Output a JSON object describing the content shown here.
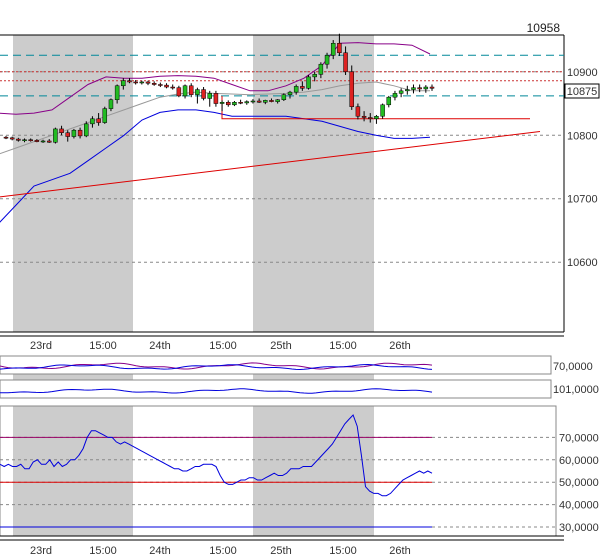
{
  "chart_data": [
    {
      "type": "candlestick",
      "header_value": "10958",
      "current_price": "10875",
      "y_ticks": [
        10600,
        10700,
        10800,
        10900
      ],
      "ylim": [
        10490,
        10958
      ],
      "x_tick_labels": [
        "23rd",
        "15:00",
        "24th",
        "15:00",
        "25th",
        "15:00",
        "26th"
      ],
      "colors": {
        "up": "#22bb22",
        "down": "#dd2222",
        "shade": "#cccccc",
        "mid_band": "#999999",
        "upper_band": "#880088",
        "lower_band": "#0000dd",
        "trend": "#dd0000",
        "support": "#008899"
      },
      "candles": [
        [
          10797,
          10799,
          10794,
          10796
        ],
        [
          10796,
          10798,
          10792,
          10794
        ],
        [
          10794,
          10796,
          10790,
          10792
        ],
        [
          10792,
          10795,
          10789,
          10793
        ],
        [
          10793,
          10795,
          10790,
          10792
        ],
        [
          10792,
          10794,
          10789,
          10790
        ],
        [
          10790,
          10793,
          10788,
          10791
        ],
        [
          10791,
          10794,
          10788,
          10789
        ],
        [
          10789,
          10812,
          10787,
          10810
        ],
        [
          10810,
          10815,
          10800,
          10804
        ],
        [
          10804,
          10808,
          10790,
          10798
        ],
        [
          10798,
          10810,
          10795,
          10808
        ],
        [
          10808,
          10812,
          10795,
          10799
        ],
        [
          10799,
          10822,
          10797,
          10818
        ],
        [
          10818,
          10830,
          10812,
          10826
        ],
        [
          10826,
          10835,
          10815,
          10820
        ],
        [
          10820,
          10845,
          10818,
          10842
        ],
        [
          10842,
          10858,
          10838,
          10856
        ],
        [
          10856,
          10880,
          10850,
          10878
        ],
        [
          10878,
          10890,
          10872,
          10886
        ],
        [
          10886,
          10890,
          10882,
          10884
        ],
        [
          10884,
          10887,
          10880,
          10883
        ],
        [
          10883,
          10886,
          10880,
          10884
        ],
        [
          10884,
          10886,
          10879,
          10882
        ],
        [
          10882,
          10885,
          10878,
          10880
        ],
        [
          10880,
          10883,
          10876,
          10879
        ],
        [
          10879,
          10882,
          10874,
          10876
        ],
        [
          10876,
          10880,
          10872,
          10875
        ],
        [
          10875,
          10878,
          10860,
          10862
        ],
        [
          10862,
          10880,
          10858,
          10878
        ],
        [
          10878,
          10882,
          10860,
          10864
        ],
        [
          10864,
          10875,
          10850,
          10872
        ],
        [
          10872,
          10876,
          10855,
          10858
        ],
        [
          10858,
          10870,
          10845,
          10866
        ],
        [
          10866,
          10870,
          10845,
          10850
        ],
        [
          10850,
          10855,
          10838,
          10852
        ],
        [
          10852,
          10855,
          10845,
          10848
        ],
        [
          10848,
          10854,
          10846,
          10852
        ],
        [
          10852,
          10856,
          10849,
          10851
        ],
        [
          10851,
          10855,
          10848,
          10853
        ],
        [
          10853,
          10857,
          10850,
          10854
        ],
        [
          10854,
          10858,
          10851,
          10852
        ],
        [
          10852,
          10856,
          10849,
          10855
        ],
        [
          10855,
          10858,
          10852,
          10853
        ],
        [
          10853,
          10857,
          10850,
          10856
        ],
        [
          10856,
          10866,
          10854,
          10864
        ],
        [
          10864,
          10870,
          10858,
          10868
        ],
        [
          10868,
          10880,
          10864,
          10877
        ],
        [
          10877,
          10885,
          10870,
          10874
        ],
        [
          10874,
          10895,
          10872,
          10892
        ],
        [
          10892,
          10900,
          10885,
          10896
        ],
        [
          10896,
          10915,
          10890,
          10912
        ],
        [
          10912,
          10930,
          10905,
          10926
        ],
        [
          10926,
          10950,
          10920,
          10945
        ],
        [
          10945,
          10960,
          10925,
          10930
        ],
        [
          10930,
          10940,
          10895,
          10900
        ],
        [
          10900,
          10910,
          10840,
          10845
        ],
        [
          10845,
          10850,
          10825,
          10830
        ],
        [
          10830,
          10838,
          10822,
          10828
        ],
        [
          10828,
          10835,
          10820,
          10826
        ],
        [
          10826,
          10832,
          10818,
          10830
        ],
        [
          10830,
          10850,
          10826,
          10848
        ],
        [
          10848,
          10862,
          10844,
          10860
        ],
        [
          10860,
          10870,
          10855,
          10866
        ],
        [
          10866,
          10874,
          10860,
          10870
        ],
        [
          10870,
          10878,
          10864,
          10872
        ],
        [
          10872,
          10880,
          10866,
          10875
        ],
        [
          10875,
          10880,
          10868,
          10873
        ],
        [
          10873,
          10879,
          10867,
          10876
        ],
        [
          10876,
          10880,
          10870,
          10874
        ]
      ],
      "mid_band": [
        10770,
        10780,
        10790,
        10800,
        10810,
        10820,
        10830,
        10840,
        10850,
        10860,
        10865,
        10868,
        10866,
        10865,
        10864,
        10865,
        10866,
        10868,
        10872,
        10878,
        10882,
        10884,
        10878,
        10870,
        10870
      ],
      "upper_band": [
        10835,
        10833,
        10835,
        10840,
        10860,
        10880,
        10892,
        10890,
        10890,
        10893,
        10894,
        10893,
        10890,
        10880,
        10870,
        10870,
        10878,
        10890,
        10910,
        10945,
        10946,
        10944,
        10944,
        10942,
        10928
      ],
      "lower_band": [
        10660,
        10690,
        10720,
        10730,
        10740,
        10760,
        10780,
        10800,
        10824,
        10836,
        10840,
        10840,
        10836,
        10830,
        10830,
        10830,
        10830,
        10826,
        10822,
        10814,
        10806,
        10800,
        10795,
        10795,
        10797
      ],
      "trend_line": [
        [
          -2,
          10703
        ],
        [
          136,
          10747
        ],
        [
          268,
          10771
        ],
        [
          440,
          10806
        ]
      ],
      "support_lines": [
        10926,
        10862
      ]
    },
    {
      "type": "line",
      "label": "70,0000",
      "colors": {
        "line1": "#880088",
        "line2": "#0000dd"
      }
    },
    {
      "type": "line",
      "label": "101,0000",
      "colors": {
        "line1": "#0000dd"
      }
    },
    {
      "type": "line",
      "y_ticks": [
        30,
        40,
        50,
        60,
        70
      ],
      "y_tick_labels": [
        "30,0000",
        "40,0000",
        "50,0000",
        "60,0000",
        "70,0000"
      ],
      "ylim": [
        26,
        84
      ],
      "levels": [
        70,
        50,
        30
      ],
      "x_tick_labels": [
        "23rd",
        "15:00",
        "24th",
        "15:00",
        "25th",
        "15:00",
        "26th"
      ],
      "values": [
        58,
        57,
        58,
        57,
        57,
        58,
        56,
        56,
        59,
        60,
        58,
        58,
        60,
        57,
        59,
        57,
        58,
        60,
        60,
        62,
        65,
        70,
        73,
        73,
        72,
        71,
        70,
        70,
        68,
        67,
        68,
        67,
        66,
        65,
        64,
        63,
        62,
        61,
        60,
        59,
        58,
        57,
        56,
        56,
        55,
        55,
        56,
        57,
        57,
        58,
        58,
        58,
        57,
        53,
        50,
        49,
        49,
        50,
        51,
        51,
        52,
        52,
        51,
        51,
        52,
        53,
        54,
        53,
        53,
        54,
        56,
        56,
        56,
        57,
        57,
        57,
        59,
        61,
        63,
        65,
        67,
        70,
        73,
        76,
        78,
        80,
        75,
        62,
        48,
        46,
        45,
        45,
        44,
        44,
        45,
        47,
        49,
        51,
        52,
        53,
        54,
        55,
        54,
        55,
        54
      ]
    }
  ]
}
